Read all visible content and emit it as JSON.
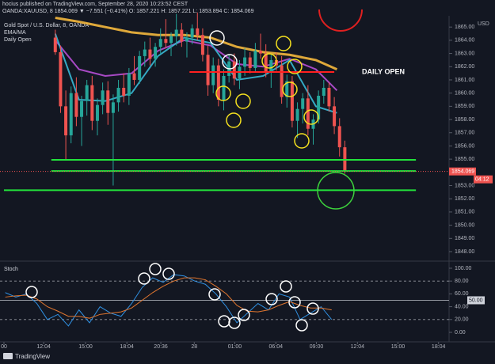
{
  "header": {
    "publisher": "hocius published on TradingView.com, September 28, 2020 10:23:52 CEST",
    "symbol_line": "OANDA:XAUUSD, 8  1854.069 ▼ −7.551 (−0.41%) O: 1857.221 H: 1857.221 L: 1853.894 C: 1854.069"
  },
  "footer": {
    "brand": "TradingView"
  },
  "chart_data": [
    {
      "type": "candlestick",
      "title": "Gold Spot / U.S. Dollar, 8, OANDA",
      "indicators": [
        "EMA/MA",
        "Daily Open"
      ],
      "axis_unit": "USD",
      "up_color": "#26a69a",
      "down_color": "#ef5350",
      "x": [
        21,
        23,
        25,
        27,
        29,
        31,
        33,
        35,
        37,
        39,
        41,
        43,
        45,
        47,
        49,
        51,
        53,
        55,
        57,
        59,
        61,
        63,
        65,
        67,
        69,
        71,
        73,
        75,
        77,
        79,
        81,
        83,
        85,
        87,
        89,
        91,
        93,
        95,
        97,
        99,
        101,
        103,
        105,
        107,
        109,
        111,
        113,
        115,
        117,
        119,
        121,
        123,
        125,
        127,
        129,
        131
      ],
      "open": [
        1864.2,
        1863.1,
        1859.0,
        1856.8,
        1860.0,
        1858.2,
        1859.4,
        1860.6,
        1857.9,
        1859.1,
        1860.2,
        1858.5,
        1859.3,
        1860.4,
        1859.8,
        1861.5,
        1861.0,
        1862.8,
        1863.3,
        1862.6,
        1863.5,
        1864.1,
        1863.8,
        1864.3,
        1864.8,
        1863.9,
        1864.2,
        1864.9,
        1864.4,
        1862.9,
        1860.6,
        1862.1,
        1859.5,
        1861.3,
        1862.4,
        1861.1,
        1862.0,
        1862.7,
        1861.9,
        1863.2,
        1863.0,
        1861.6,
        1862.5,
        1862.1,
        1859.7,
        1860.9,
        1857.9,
        1858.8,
        1859.6,
        1857.3,
        1858.0,
        1859.8,
        1860.4,
        1859.0,
        1857.5,
        1855.9
      ],
      "high": [
        1864.8,
        1863.6,
        1860.2,
        1860.5,
        1861.2,
        1859.8,
        1861.0,
        1861.3,
        1859.6,
        1860.8,
        1860.9,
        1859.9,
        1861.0,
        1861.5,
        1861.9,
        1862.8,
        1863.2,
        1863.9,
        1864.2,
        1863.8,
        1864.9,
        1865.6,
        1864.6,
        1866.0,
        1865.3,
        1864.6,
        1865.2,
        1866.1,
        1864.9,
        1863.6,
        1862.7,
        1862.6,
        1861.8,
        1862.9,
        1863.0,
        1862.5,
        1863.4,
        1863.1,
        1863.8,
        1864.5,
        1863.7,
        1862.9,
        1863.1,
        1862.8,
        1861.4,
        1861.3,
        1859.3,
        1860.0,
        1860.6,
        1858.4,
        1860.2,
        1861.0,
        1860.8,
        1859.7,
        1858.1,
        1856.4
      ],
      "low": [
        1862.9,
        1858.5,
        1855.0,
        1856.2,
        1857.5,
        1856.0,
        1858.3,
        1857.2,
        1856.8,
        1858.4,
        1857.6,
        1853.0,
        1858.6,
        1859.3,
        1859.1,
        1860.6,
        1860.7,
        1862.0,
        1862.1,
        1862.0,
        1863.0,
        1863.4,
        1862.8,
        1863.6,
        1863.5,
        1862.7,
        1863.7,
        1864.0,
        1862.4,
        1859.8,
        1860.0,
        1859.0,
        1858.7,
        1860.8,
        1860.6,
        1860.3,
        1861.3,
        1861.5,
        1861.6,
        1862.6,
        1861.2,
        1860.4,
        1861.7,
        1859.2,
        1858.9,
        1857.4,
        1856.6,
        1857.7,
        1856.8,
        1856.1,
        1857.7,
        1859.2,
        1858.6,
        1856.9,
        1855.2,
        1853.9
      ],
      "close": [
        1863.1,
        1859.0,
        1856.8,
        1860.0,
        1858.2,
        1859.4,
        1860.6,
        1857.9,
        1859.1,
        1860.2,
        1858.5,
        1859.3,
        1860.4,
        1859.8,
        1861.5,
        1861.0,
        1862.8,
        1863.3,
        1862.6,
        1863.5,
        1864.1,
        1863.8,
        1864.3,
        1864.8,
        1863.9,
        1864.2,
        1864.9,
        1864.4,
        1862.9,
        1860.6,
        1862.1,
        1859.5,
        1861.3,
        1862.4,
        1861.1,
        1862.0,
        1862.7,
        1861.9,
        1863.2,
        1863.0,
        1861.6,
        1862.5,
        1862.1,
        1859.7,
        1860.9,
        1857.9,
        1858.8,
        1859.6,
        1857.3,
        1858.0,
        1859.8,
        1860.4,
        1859.0,
        1857.5,
        1855.9,
        1854.1
      ],
      "overlays": [
        {
          "color": "#f5b83d",
          "width": 3,
          "x": [
            21,
            30,
            40,
            50,
            60,
            70,
            80,
            90,
            100,
            110,
            120,
            128
          ],
          "values": [
            1865.7,
            1865.4,
            1865.0,
            1864.6,
            1864.4,
            1864.4,
            1864.2,
            1863.5,
            1863.1,
            1862.9,
            1862.5,
            1861.8
          ]
        },
        {
          "color": "#b84fd6",
          "width": 2,
          "x": [
            21,
            30,
            40,
            50,
            60,
            70,
            80,
            90,
            100,
            110,
            120,
            128
          ],
          "values": [
            1864.0,
            1861.8,
            1861.3,
            1861.5,
            1863.2,
            1864.0,
            1863.6,
            1862.2,
            1862.0,
            1862.6,
            1861.8,
            1860.2
          ]
        },
        {
          "color": "#39b9d6",
          "width": 2,
          "x": [
            21,
            30,
            40,
            50,
            60,
            70,
            80,
            90,
            100,
            110,
            120,
            128
          ],
          "values": [
            1864.5,
            1859.5,
            1859.4,
            1860.0,
            1862.8,
            1864.2,
            1863.8,
            1861.0,
            1861.3,
            1862.5,
            1859.0,
            1858.5
          ]
        }
      ],
      "daily_open": {
        "value": 1861.6,
        "x": [
          72,
          127
        ],
        "color": "#ff2020",
        "label": "DAILY OPEN"
      },
      "levels": [
        {
          "value": 1854.95,
          "x": [
            19.5,
            158
          ],
          "color": "#22e33b"
        },
        {
          "value": 1854.1,
          "x": [
            19.5,
            158
          ],
          "color": "#22e33b"
        },
        {
          "value": 1852.65,
          "x": [
            1.5,
            158
          ],
          "color": "#22e33b"
        }
      ],
      "last_price": {
        "value": 1854.069,
        "label": "1854.069",
        "countdown": "04:12"
      },
      "xlim": [
        0,
        170
      ],
      "ylim": [
        1847.4,
        1865.85
      ],
      "yticks": [
        {
          "value": 1848,
          "label": "1848.00"
        },
        {
          "value": 1849,
          "label": "1849.00"
        },
        {
          "value": 1850,
          "label": "1850.00"
        },
        {
          "value": 1851,
          "label": "1851.00"
        },
        {
          "value": 1852,
          "label": "1852.00"
        },
        {
          "value": 1853,
          "label": "1853.00"
        },
        {
          "value": 1855,
          "label": "1855.00"
        },
        {
          "value": 1856,
          "label": "1856.00"
        },
        {
          "value": 1857,
          "label": "1857.00"
        },
        {
          "value": 1858,
          "label": "1858.00"
        },
        {
          "value": 1859,
          "label": "1859.00"
        },
        {
          "value": 1860,
          "label": "1860.00"
        },
        {
          "value": 1861,
          "label": "1861.00"
        },
        {
          "value": 1862,
          "label": "1862.00"
        },
        {
          "value": 1863,
          "label": "1863.00"
        },
        {
          "value": 1864,
          "label": "1864.00"
        },
        {
          "value": 1865,
          "label": "1865.00"
        }
      ]
    },
    {
      "type": "line",
      "title": "Stoch",
      "x": [
        2,
        6,
        10,
        14,
        18,
        22,
        26,
        30,
        34,
        38,
        42,
        46,
        50,
        54,
        58,
        62,
        66,
        70,
        74,
        78,
        82,
        86,
        90,
        94,
        98,
        102,
        106,
        110,
        114,
        118,
        122,
        126
      ],
      "series": [
        {
          "color": "#2f8fe0",
          "values": [
            62,
            55,
            60,
            45,
            20,
            28,
            10,
            35,
            15,
            40,
            30,
            25,
            45,
            70,
            85,
            78,
            90,
            88,
            80,
            75,
            60,
            40,
            15,
            30,
            45,
            35,
            60,
            55,
            20,
            30,
            40,
            20
          ]
        },
        {
          "color": "#e0762f",
          "values": [
            55,
            57,
            58,
            52,
            40,
            33,
            25,
            25,
            22,
            28,
            30,
            32,
            38,
            50,
            62,
            72,
            80,
            85,
            85,
            82,
            72,
            60,
            42,
            33,
            32,
            35,
            42,
            48,
            42,
            38,
            38,
            35
          ]
        }
      ],
      "bands": [
        {
          "value": 80,
          "dashed": true
        },
        {
          "value": 50,
          "dashed": false
        },
        {
          "value": 20,
          "dashed": true
        }
      ],
      "last_marker": {
        "value": 50,
        "label": "50.00"
      },
      "xlim": [
        0,
        170
      ],
      "ylim": [
        -14.8,
        108.6
      ],
      "yticks": [
        {
          "value": 0,
          "label": "0.00"
        },
        {
          "value": 20,
          "label": "20.00"
        },
        {
          "value": 40,
          "label": "40.00"
        },
        {
          "value": 60,
          "label": "60.00"
        },
        {
          "value": 80,
          "label": "80.00"
        },
        {
          "value": 100,
          "label": "100.00"
        }
      ],
      "xticks": [
        {
          "value": 1.5,
          "label": "00"
        },
        {
          "value": 16.6,
          "label": "12:04"
        },
        {
          "value": 32.5,
          "label": "15:00"
        },
        {
          "value": 48.2,
          "label": "18:04"
        },
        {
          "value": 61.1,
          "label": "20:36"
        },
        {
          "value": 73.8,
          "label": "28"
        },
        {
          "value": 89.2,
          "label": "01:00"
        },
        {
          "value": 104.8,
          "label": "06:04"
        },
        {
          "value": 120.2,
          "label": "09:00"
        },
        {
          "value": 135.8,
          "label": "12:04"
        },
        {
          "value": 151.2,
          "label": "15:00"
        },
        {
          "value": 166.6,
          "label": "18:04"
        }
      ]
    }
  ]
}
